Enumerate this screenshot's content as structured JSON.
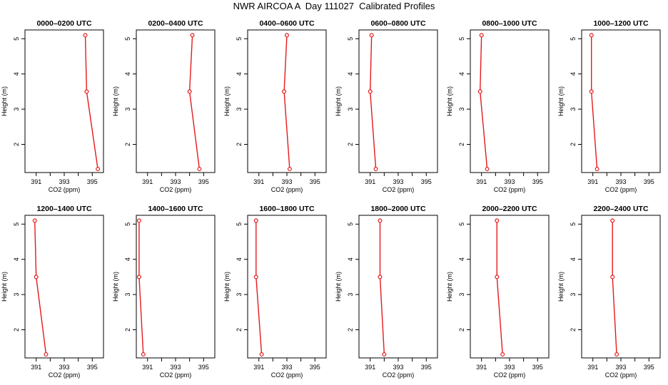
{
  "title": "NWR AIRCOA A  Day 111027  Calibrated Profiles",
  "colors": {
    "profile": "#e41a1c",
    "axis": "#000000"
  },
  "chart_data": [
    {
      "type": "line",
      "title": "0000–0200 UTC",
      "xlabel": "CO2 (ppm)",
      "ylabel": "Height (m)",
      "xlim": [
        390.2,
        395.8
      ],
      "ylim": [
        1.2,
        5.25
      ],
      "xticks": [
        "391",
        "393",
        "395"
      ],
      "yticks": [
        "2",
        "3",
        "4",
        "5"
      ],
      "series": [
        {
          "x": [
            394.5,
            394.6,
            395.4
          ],
          "y": [
            5.1,
            3.5,
            1.3
          ]
        }
      ]
    },
    {
      "type": "line",
      "title": "0200–0400 UTC",
      "xlabel": "CO2 (ppm)",
      "ylabel": "Height (m)",
      "xlim": [
        390.2,
        395.8
      ],
      "ylim": [
        1.2,
        5.25
      ],
      "xticks": [
        "391",
        "393",
        "395"
      ],
      "yticks": [
        "2",
        "3",
        "4",
        "5"
      ],
      "series": [
        {
          "x": [
            394.2,
            394.0,
            394.7
          ],
          "y": [
            5.1,
            3.5,
            1.3
          ]
        }
      ]
    },
    {
      "type": "line",
      "title": "0400–0600 UTC",
      "xlabel": "CO2 (ppm)",
      "ylabel": "Height (m)",
      "xlim": [
        390.2,
        395.8
      ],
      "ylim": [
        1.2,
        5.25
      ],
      "xticks": [
        "391",
        "393",
        "395"
      ],
      "yticks": [
        "2",
        "3",
        "4",
        "5"
      ],
      "series": [
        {
          "x": [
            393.0,
            392.8,
            393.2
          ],
          "y": [
            5.1,
            3.5,
            1.3
          ]
        }
      ]
    },
    {
      "type": "line",
      "title": "0600–0800 UTC",
      "xlabel": "CO2 (ppm)",
      "ylabel": "Height (m)",
      "xlim": [
        390.2,
        395.8
      ],
      "ylim": [
        1.2,
        5.25
      ],
      "xticks": [
        "391",
        "393",
        "395"
      ],
      "yticks": [
        "2",
        "3",
        "4",
        "5"
      ],
      "series": [
        {
          "x": [
            391.1,
            391.0,
            391.4
          ],
          "y": [
            5.1,
            3.5,
            1.3
          ]
        }
      ]
    },
    {
      "type": "line",
      "title": "0800–1000 UTC",
      "xlabel": "CO2 (ppm)",
      "ylabel": "Height (m)",
      "xlim": [
        390.2,
        395.8
      ],
      "ylim": [
        1.2,
        5.25
      ],
      "xticks": [
        "391",
        "393",
        "395"
      ],
      "yticks": [
        "2",
        "3",
        "4",
        "5"
      ],
      "series": [
        {
          "x": [
            391.0,
            390.9,
            391.4
          ],
          "y": [
            5.1,
            3.5,
            1.3
          ]
        }
      ]
    },
    {
      "type": "line",
      "title": "1000–1200 UTC",
      "xlabel": "CO2 (ppm)",
      "ylabel": "Height (m)",
      "xlim": [
        390.2,
        395.8
      ],
      "ylim": [
        1.2,
        5.25
      ],
      "xticks": [
        "391",
        "393",
        "395"
      ],
      "yticks": [
        "2",
        "3",
        "4",
        "5"
      ],
      "series": [
        {
          "x": [
            390.9,
            390.9,
            391.3
          ],
          "y": [
            5.1,
            3.5,
            1.3
          ]
        }
      ]
    },
    {
      "type": "line",
      "title": "1200–1400 UTC",
      "xlabel": "CO2 (ppm)",
      "ylabel": "Height (m)",
      "xlim": [
        390.2,
        395.8
      ],
      "ylim": [
        1.2,
        5.25
      ],
      "xticks": [
        "391",
        "393",
        "395"
      ],
      "yticks": [
        "2",
        "3",
        "4",
        "5"
      ],
      "series": [
        {
          "x": [
            390.9,
            391.0,
            391.7
          ],
          "y": [
            5.1,
            3.5,
            1.3
          ]
        }
      ]
    },
    {
      "type": "line",
      "title": "1400–1600 UTC",
      "xlabel": "CO2 (ppm)",
      "ylabel": "Height (m)",
      "xlim": [
        390.2,
        395.8
      ],
      "ylim": [
        1.2,
        5.25
      ],
      "xticks": [
        "391",
        "393",
        "395"
      ],
      "yticks": [
        "2",
        "3",
        "4",
        "5"
      ],
      "series": [
        {
          "x": [
            390.4,
            390.4,
            390.7
          ],
          "y": [
            5.1,
            3.5,
            1.3
          ]
        }
      ]
    },
    {
      "type": "line",
      "title": "1600–1800 UTC",
      "xlabel": "CO2 (ppm)",
      "ylabel": "Height (m)",
      "xlim": [
        390.2,
        395.8
      ],
      "ylim": [
        1.2,
        5.25
      ],
      "xticks": [
        "391",
        "393",
        "395"
      ],
      "yticks": [
        "2",
        "3",
        "4",
        "5"
      ],
      "series": [
        {
          "x": [
            390.8,
            390.8,
            391.2
          ],
          "y": [
            5.1,
            3.5,
            1.3
          ]
        }
      ]
    },
    {
      "type": "line",
      "title": "1800–2000 UTC",
      "xlabel": "CO2 (ppm)",
      "ylabel": "Height (m)",
      "xlim": [
        390.2,
        395.8
      ],
      "ylim": [
        1.2,
        5.25
      ],
      "xticks": [
        "391",
        "393",
        "395"
      ],
      "yticks": [
        "2",
        "3",
        "4",
        "5"
      ],
      "series": [
        {
          "x": [
            391.7,
            391.7,
            392.0
          ],
          "y": [
            5.1,
            3.5,
            1.3
          ]
        }
      ]
    },
    {
      "type": "line",
      "title": "2000–2200 UTC",
      "xlabel": "CO2 (ppm)",
      "ylabel": "Height (m)",
      "xlim": [
        390.2,
        395.8
      ],
      "ylim": [
        1.2,
        5.25
      ],
      "xticks": [
        "391",
        "393",
        "395"
      ],
      "yticks": [
        "2",
        "3",
        "4",
        "5"
      ],
      "series": [
        {
          "x": [
            392.1,
            392.1,
            392.5
          ],
          "y": [
            5.1,
            3.5,
            1.3
          ]
        }
      ]
    },
    {
      "type": "line",
      "title": "2200–2400 UTC",
      "xlabel": "CO2 (ppm)",
      "ylabel": "Height (m)",
      "xlim": [
        390.2,
        395.8
      ],
      "ylim": [
        1.2,
        5.25
      ],
      "xticks": [
        "391",
        "393",
        "395"
      ],
      "yticks": [
        "2",
        "3",
        "4",
        "5"
      ],
      "series": [
        {
          "x": [
            392.4,
            392.4,
            392.7
          ],
          "y": [
            5.1,
            3.5,
            1.3
          ]
        }
      ]
    }
  ]
}
